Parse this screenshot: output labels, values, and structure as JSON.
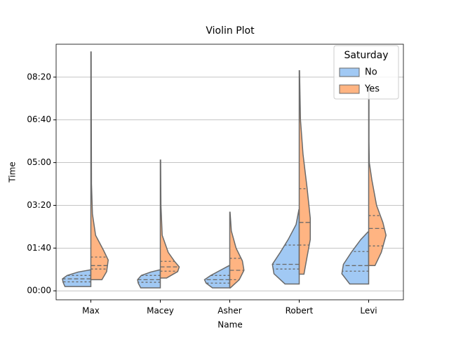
{
  "chart_data": {
    "type": "violin",
    "title": "Violin Plot",
    "x_label": "Name",
    "y_label": "Time",
    "categories": [
      "Max",
      "Macey",
      "Asher",
      "Robert",
      "Levi"
    ],
    "legend_title": "Saturday",
    "legend_position": "upper right",
    "grid": true,
    "ylim": [
      -21,
      577
    ],
    "yticks": [
      {
        "value": 0,
        "label": "00:00"
      },
      {
        "value": 100,
        "label": "01:40"
      },
      {
        "value": 200,
        "label": "03:20"
      },
      {
        "value": 300,
        "label": "05:00"
      },
      {
        "value": 400,
        "label": "06:40"
      },
      {
        "value": 500,
        "label": "08:20"
      }
    ],
    "series": [
      {
        "name": "No",
        "color": "#a1c9f4",
        "violins": [
          {
            "profile": [
              [
                10,
                0.82
              ],
              [
                20,
                0.88
              ],
              [
                28,
                0.9
              ],
              [
                36,
                0.75
              ],
              [
                44,
                0.4
              ],
              [
                49,
                0.02
              ]
            ],
            "q1": 21,
            "median": 28,
            "q3": 36
          },
          {
            "profile": [
              [
                7,
                0.62
              ],
              [
                18,
                0.7
              ],
              [
                26,
                0.72
              ],
              [
                36,
                0.6
              ],
              [
                44,
                0.3
              ],
              [
                49,
                0.02
              ]
            ],
            "q1": 20,
            "median": 26,
            "q3": 36
          },
          {
            "profile": [
              [
                7,
                0.55
              ],
              [
                18,
                0.75
              ],
              [
                26,
                0.8
              ],
              [
                36,
                0.6
              ],
              [
                48,
                0.3
              ],
              [
                59,
                0.02
              ]
            ],
            "q1": 18,
            "median": 26,
            "q3": 36
          },
          {
            "profile": [
              [
                16,
                0.45
              ],
              [
                40,
                0.8
              ],
              [
                62,
                0.85
              ],
              [
                90,
                0.6
              ],
              [
                120,
                0.35
              ],
              [
                155,
                0.1
              ],
              [
                190,
                0.01
              ]
            ],
            "q1": 51,
            "median": 62,
            "q3": 107
          },
          {
            "profile": [
              [
                16,
                0.6
              ],
              [
                40,
                0.85
              ],
              [
                62,
                0.8
              ],
              [
                90,
                0.55
              ],
              [
                120,
                0.25
              ],
              [
                138,
                0.02
              ]
            ],
            "q1": 46,
            "median": 59,
            "q3": 92
          }
        ]
      },
      {
        "name": "Yes",
        "color": "#ffb482",
        "violins": [
          {
            "profile": [
              [
                26,
                0.35
              ],
              [
                45,
                0.5
              ],
              [
                72,
                0.55
              ],
              [
                95,
                0.4
              ],
              [
                130,
                0.15
              ],
              [
                180,
                0.05
              ],
              [
                250,
                0.02
              ],
              [
                559,
                0.01
              ]
            ],
            "q1": 51,
            "median": 59,
            "q3": 79
          },
          {
            "profile": [
              [
                30,
                0.2
              ],
              [
                45,
                0.55
              ],
              [
                56,
                0.6
              ],
              [
                69,
                0.45
              ],
              [
                90,
                0.25
              ],
              [
                130,
                0.06
              ],
              [
                200,
                0.02
              ],
              [
                306,
                0.01
              ]
            ],
            "q1": 46,
            "median": 56,
            "q3": 69
          },
          {
            "profile": [
              [
                7,
                0.02
              ],
              [
                26,
                0.3
              ],
              [
                48,
                0.45
              ],
              [
                70,
                0.4
              ],
              [
                100,
                0.2
              ],
              [
                140,
                0.05
              ],
              [
                184,
                0.01
              ]
            ],
            "q1": 26,
            "median": 48,
            "q3": 76
          },
          {
            "profile": [
              [
                39,
                0.15
              ],
              [
                80,
                0.25
              ],
              [
                120,
                0.35
              ],
              [
                170,
                0.35
              ],
              [
                240,
                0.25
              ],
              [
                320,
                0.12
              ],
              [
                400,
                0.04
              ],
              [
                515,
                0.01
              ]
            ],
            "q1": 107,
            "median": 160,
            "q3": 239
          },
          {
            "profile": [
              [
                59,
                0.2
              ],
              [
                90,
                0.4
              ],
              [
                130,
                0.55
              ],
              [
                160,
                0.45
              ],
              [
                200,
                0.25
              ],
              [
                260,
                0.1
              ],
              [
                300,
                0.02
              ],
              [
                350,
                0.01
              ],
              [
                475,
                0.01
              ]
            ],
            "q1": 105,
            "median": 146,
            "q3": 176
          }
        ]
      }
    ]
  }
}
